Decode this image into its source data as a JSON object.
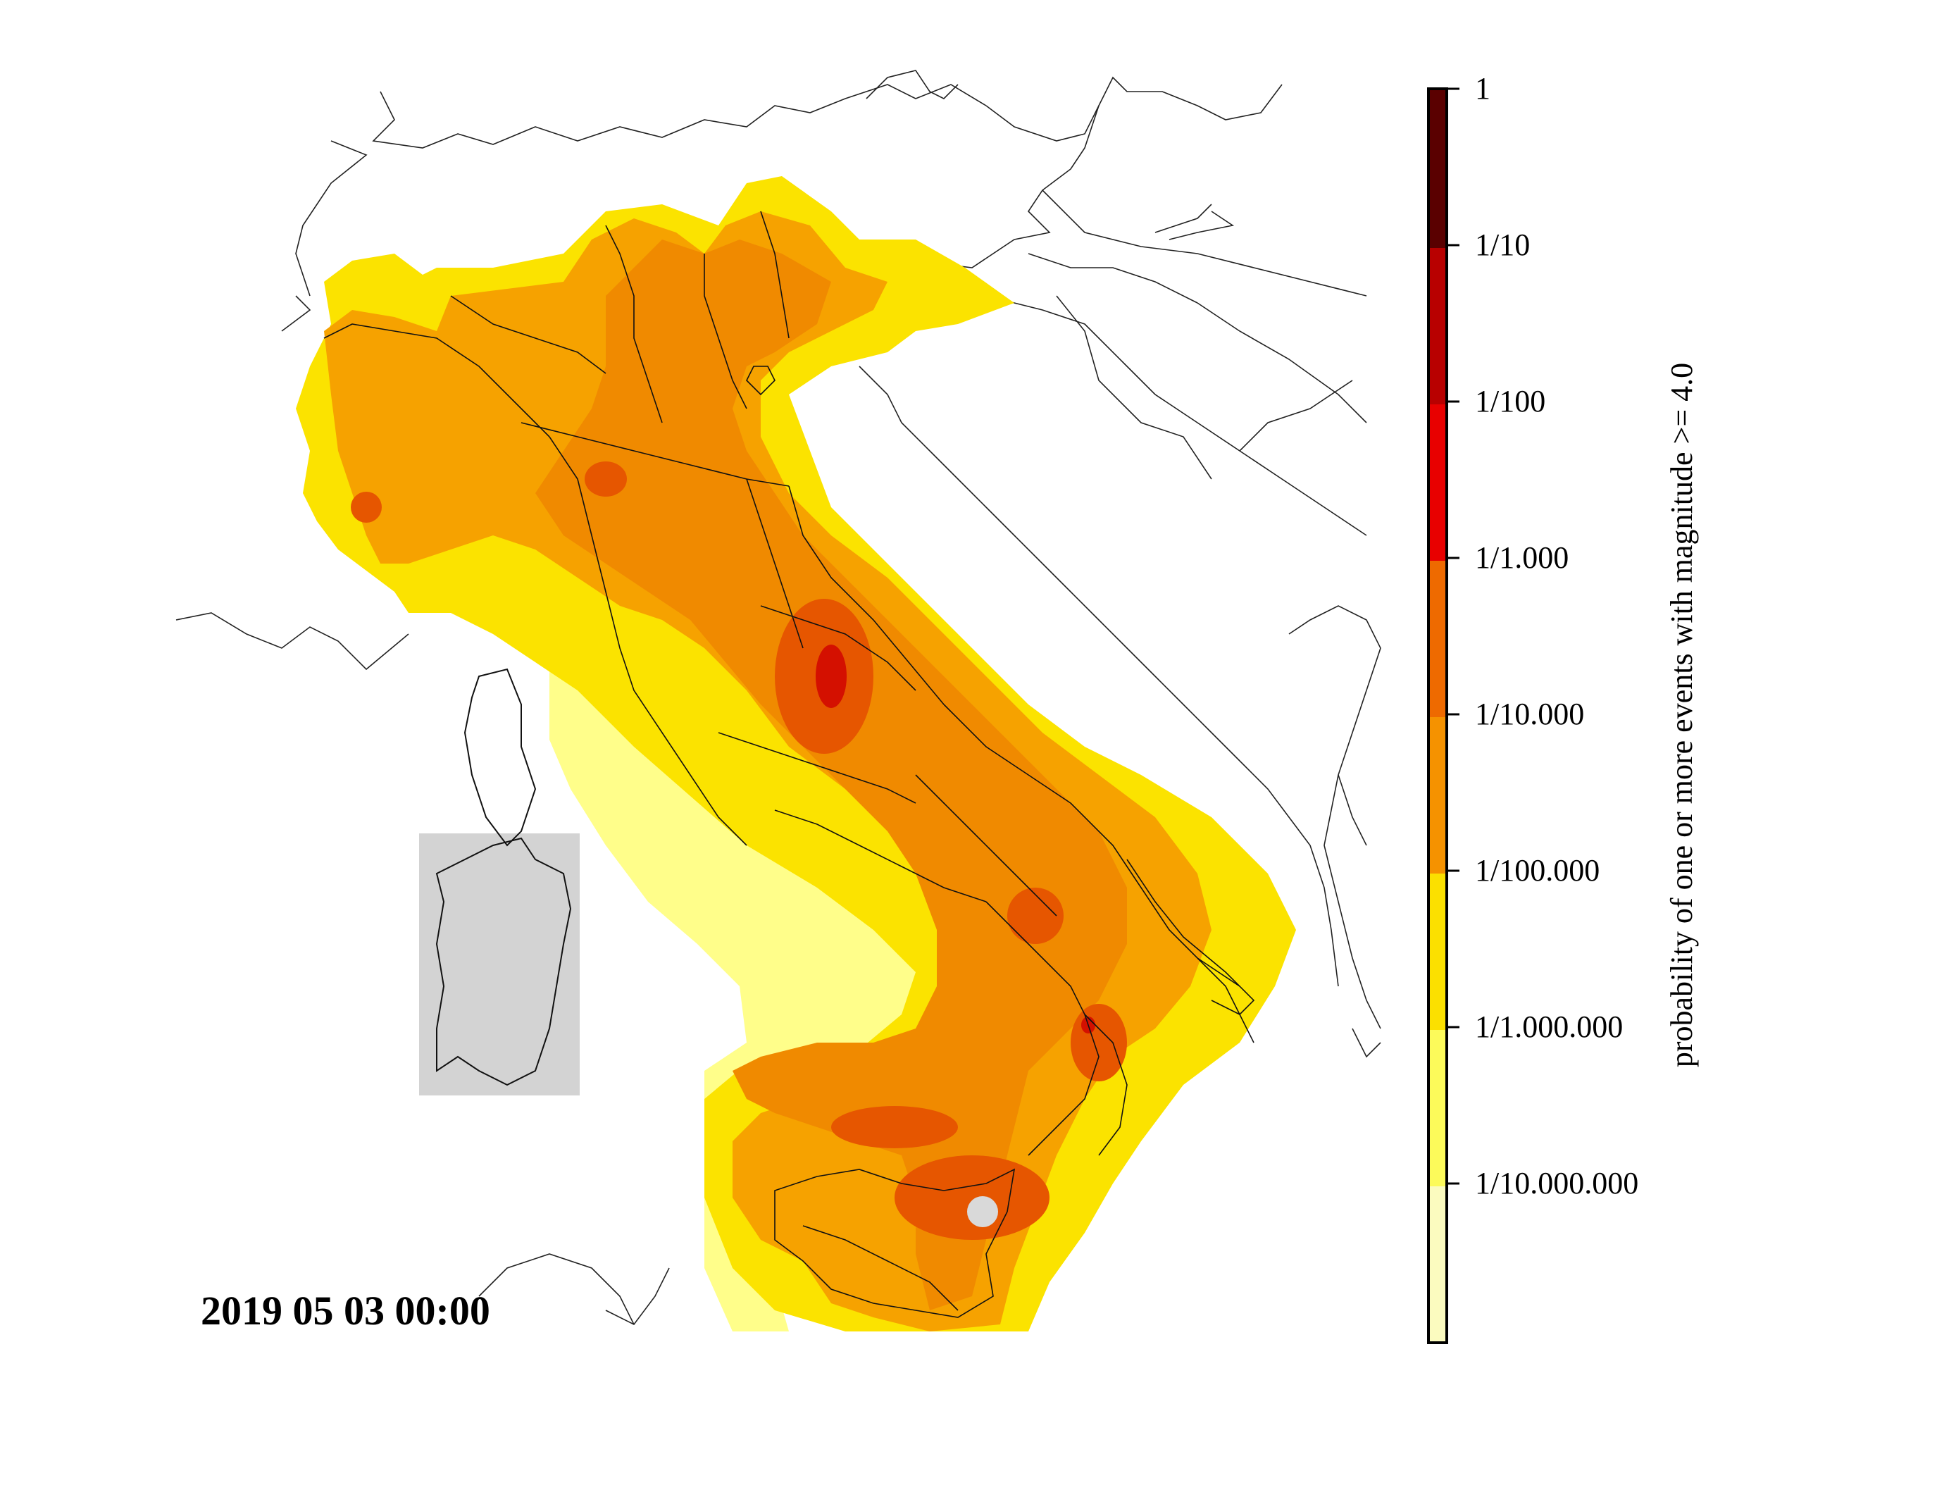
{
  "map": {
    "timestamp": "2019 05 03 00:00",
    "event_marker_color": "#d9d9d9",
    "inset_color": "#d3d3d3"
  },
  "colorbar": {
    "label": "probability of one or more events with magnitude >= 4.0",
    "ticks": [
      "1",
      "1/10",
      "1/100",
      "1/1.000",
      "1/10.000",
      "1/100.000",
      "1/1.000.000",
      "1/10.000.000"
    ],
    "colors": [
      "#fbfbbf",
      "#fcfa5a",
      "#fbe000",
      "#f59200",
      "#ee6a00",
      "#e80000",
      "#b80000",
      "#5a0000"
    ],
    "scale": "log10"
  },
  "palette": {
    "level_1e7": "#fffe8a",
    "level_1e6": "#fbe300",
    "level_1e5": "#f6a200",
    "level_1e4": "#f08a00",
    "level_1e3": "#e65600",
    "level_1e2": "#d41000"
  }
}
